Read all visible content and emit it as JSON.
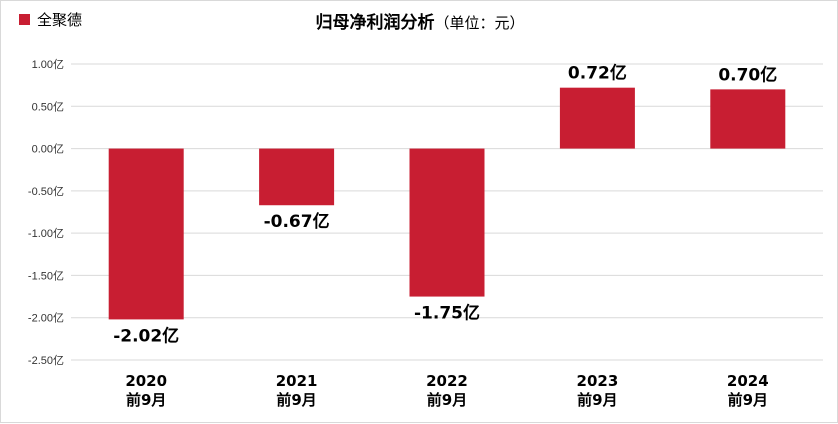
{
  "chart_data": {
    "type": "bar",
    "title": "归母净利润分析",
    "subtitle": "（单位：元）",
    "categories": [
      [
        "2020",
        "前9月"
      ],
      [
        "2021",
        "前9月"
      ],
      [
        "2022",
        "前9月"
      ],
      [
        "2023",
        "前9月"
      ],
      [
        "2024",
        "前9月"
      ]
    ],
    "series": [
      {
        "name": "全聚德",
        "values": [
          -2.02,
          -0.67,
          -1.75,
          0.72,
          0.7
        ],
        "labels": [
          "-2.02亿",
          "-0.67亿",
          "-1.75亿",
          "0.72亿",
          "0.70亿"
        ],
        "color": "#c81e32"
      }
    ],
    "ylim": [
      -2.5,
      1.0
    ],
    "yticks": [
      1.0,
      0.5,
      0.0,
      -0.5,
      -1.0,
      -1.5,
      -2.0,
      -2.5
    ],
    "ytick_labels": [
      "1.00亿",
      "0.50亿",
      "0.00亿",
      "-0.50亿",
      "-1.00亿",
      "-1.50亿",
      "-2.00亿",
      "-2.50亿"
    ],
    "grid": true,
    "gridline_color": "#d9d9d9",
    "legend": "top-left"
  }
}
